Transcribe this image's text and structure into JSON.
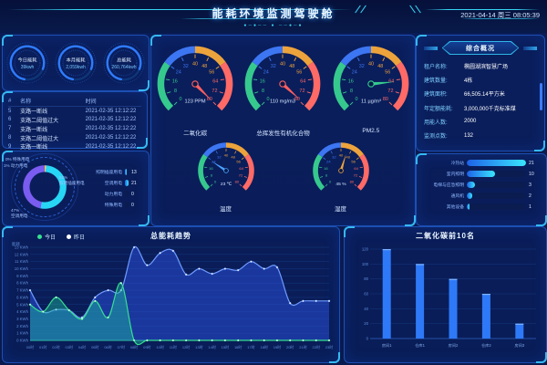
{
  "header": {
    "title": "能耗环境监测驾驶舱",
    "datetime": "2021-04-14 周三 08:05:39",
    "ornament": "●─●──  ●  ──●─●"
  },
  "kpi_rings": [
    {
      "label": "今日能耗",
      "value": "39kwh"
    },
    {
      "label": "本月能耗",
      "value": "2,059kwh"
    },
    {
      "label": "总能耗",
      "value": "260,764kwh"
    }
  ],
  "alarm_table": {
    "columns": [
      "#",
      "名称",
      "时间"
    ],
    "rows": [
      {
        "no": "5",
        "name": "支路一断线",
        "time": "2021-02-35 12:12:22"
      },
      {
        "no": "6",
        "name": "支路二阈值过大",
        "time": "2021-02-35 12:12:22"
      },
      {
        "no": "7",
        "name": "支路一断线",
        "time": "2021-02-35 12:12:22"
      },
      {
        "no": "8",
        "name": "支路二阈值过大",
        "time": "2021-02-35 12:12:22"
      },
      {
        "no": "9",
        "name": "支路一断线",
        "time": "2021-02-35 12:12:22"
      }
    ]
  },
  "overview": {
    "title": "综合概况",
    "rows": [
      {
        "label": "租户名称:",
        "value": "椭圆湖滨智慧广场"
      },
      {
        "label": "建筑数量:",
        "value": "4栋"
      },
      {
        "label": "建筑面积:",
        "value": "66,505.14平方米"
      },
      {
        "label": "年定额能耗:",
        "value": "3,000,000千克标准煤"
      },
      {
        "label": "用能人数:",
        "value": "2000"
      },
      {
        "label": "监测点数:",
        "value": "132"
      }
    ]
  },
  "colors": {
    "accent_cyan": "#35d3f2",
    "bar_gradient_start": "#1e62e8",
    "bar_gradient_end": "#39e6ff",
    "gauge_green": "#36c98e",
    "gauge_blue": "#3d76f2",
    "gauge_orange": "#eda33c",
    "gauge_red": "#ff6a66"
  },
  "chart_data": [
    {
      "id": "energy-donut",
      "type": "pie",
      "slices": [
        {
          "label": "动力用电",
          "pct": 1,
          "color": "#f7c64a"
        },
        {
          "label": "照明插座用电",
          "pct": 52,
          "color": "#27d6f5"
        },
        {
          "label": "空调用电",
          "pct": 47,
          "color": "#7a5cf0"
        },
        {
          "label": "特殊用电",
          "pct": 0,
          "color": "#36c98e"
        }
      ]
    },
    {
      "id": "energy-bars",
      "type": "bar",
      "orientation": "horizontal",
      "categories": [
        "照明插座用电",
        "空调用电",
        "动力用电",
        "特殊用电"
      ],
      "values": [
        13,
        21,
        0,
        0
      ],
      "max": 21
    },
    {
      "id": "subsystem-bars",
      "type": "bar",
      "orientation": "horizontal",
      "categories": [
        "冷热站",
        "室内照明",
        "电梯与应急照明",
        "通风机",
        "其他设备"
      ],
      "values": [
        21,
        10,
        3,
        2,
        1
      ],
      "max": 21
    },
    {
      "id": "trend",
      "type": "area",
      "title": "总能耗趋势",
      "ylabel": "能耗",
      "unit": "KWh",
      "ylim": [
        0,
        13
      ],
      "x": [
        "00时",
        "01时",
        "02时",
        "03时",
        "04时",
        "05时",
        "06时",
        "07时",
        "08时",
        "09时",
        "10时",
        "11时",
        "12时",
        "13时",
        "14时",
        "15时",
        "16时",
        "17时",
        "18时",
        "19时",
        "20时",
        "21时",
        "22时",
        "23时"
      ],
      "series": [
        {
          "name": "昨日",
          "color": "#6f9bff",
          "fill": "rgba(43,82,226,0.50)",
          "dot": "#ffffff",
          "values": [
            7,
            4,
            4.3,
            4.2,
            3.2,
            6,
            7,
            7,
            13,
            10.5,
            12.2,
            12.5,
            9.2,
            10,
            9.3,
            10,
            9.8,
            11,
            10,
            10.2,
            5.2,
            5.5,
            5.5,
            5.5
          ]
        },
        {
          "name": "今日",
          "color": "#35e08f",
          "fill": "rgba(32,196,160,0.42)",
          "dot": "#ffffff",
          "values": [
            5,
            4,
            6,
            4.2,
            3,
            5.5,
            3.2,
            8,
            0,
            0,
            0,
            0,
            0,
            0,
            0,
            0,
            0,
            0,
            0,
            0,
            0,
            0,
            0,
            0
          ]
        }
      ],
      "legend": [
        {
          "name": "今日",
          "color": "#35e08f"
        },
        {
          "name": "昨日",
          "color": "#ffffff"
        }
      ]
    },
    {
      "id": "co2-top",
      "type": "bar",
      "title": "二氧化碳前10名",
      "categories": [
        "房间1",
        "仓库1",
        "房间2",
        "仓库2",
        "房间3"
      ],
      "values": [
        120,
        100,
        80,
        60,
        20
      ],
      "ylim": [
        0,
        120
      ],
      "ytick_step": 20,
      "bar_color": "#2e79f7"
    },
    {
      "id": "gauges",
      "type": "gauge",
      "items": [
        {
          "label": "二氧化碳",
          "value": "123 PPM",
          "min": 0,
          "max": 80,
          "tick_step": 8,
          "needle_deg": 45,
          "needle_color": "#ff5f5f",
          "size": "large"
        },
        {
          "label": "总挥发性有机化合物",
          "value": "110 mg/m3",
          "min": 0,
          "max": 80,
          "tick_step": 8,
          "needle_deg": 42,
          "needle_color": "#ff5f5f",
          "size": "large"
        },
        {
          "label": "PM2.5",
          "value": "11 µg/m³",
          "min": 0,
          "max": 80,
          "tick_step": 8,
          "needle_deg": 355,
          "needle_color": "#36c98e",
          "size": "large"
        },
        {
          "label": "温度",
          "value": "23 ℃",
          "min": 0,
          "max": 80,
          "tick_step": 8,
          "needle_deg": 213,
          "needle_color": "#4aa3ff",
          "size": "small"
        },
        {
          "label": "湿度",
          "value": "45 %",
          "min": 0,
          "max": 80,
          "tick_step": 8,
          "needle_deg": 287,
          "needle_color": "#eda33c",
          "size": "small"
        }
      ]
    }
  ]
}
